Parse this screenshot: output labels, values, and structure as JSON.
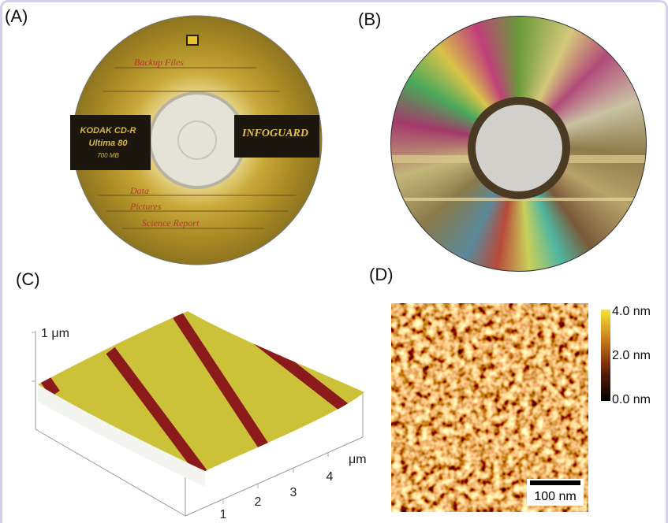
{
  "panels": [
    {
      "label": "(A)",
      "disc": {
        "brand": "KODAK CD-R",
        "model": "Ultima 80",
        "capacity": "700 MB",
        "logo": "INFOGUARD",
        "notes": [
          "Backup Files",
          "Data",
          "Pictures",
          "Science Report"
        ]
      }
    },
    {
      "label": "(B)"
    },
    {
      "label": "(C)",
      "z_axis_label": "1 μm",
      "x_axis_unit": "μm",
      "x_ticks": [
        "1",
        "2",
        "3",
        "4"
      ]
    },
    {
      "label": "(D)",
      "colorbar_labels": [
        "4.0 nm",
        "2.0 nm",
        "0.0 nm"
      ],
      "scale_bar": "100 nm"
    }
  ]
}
